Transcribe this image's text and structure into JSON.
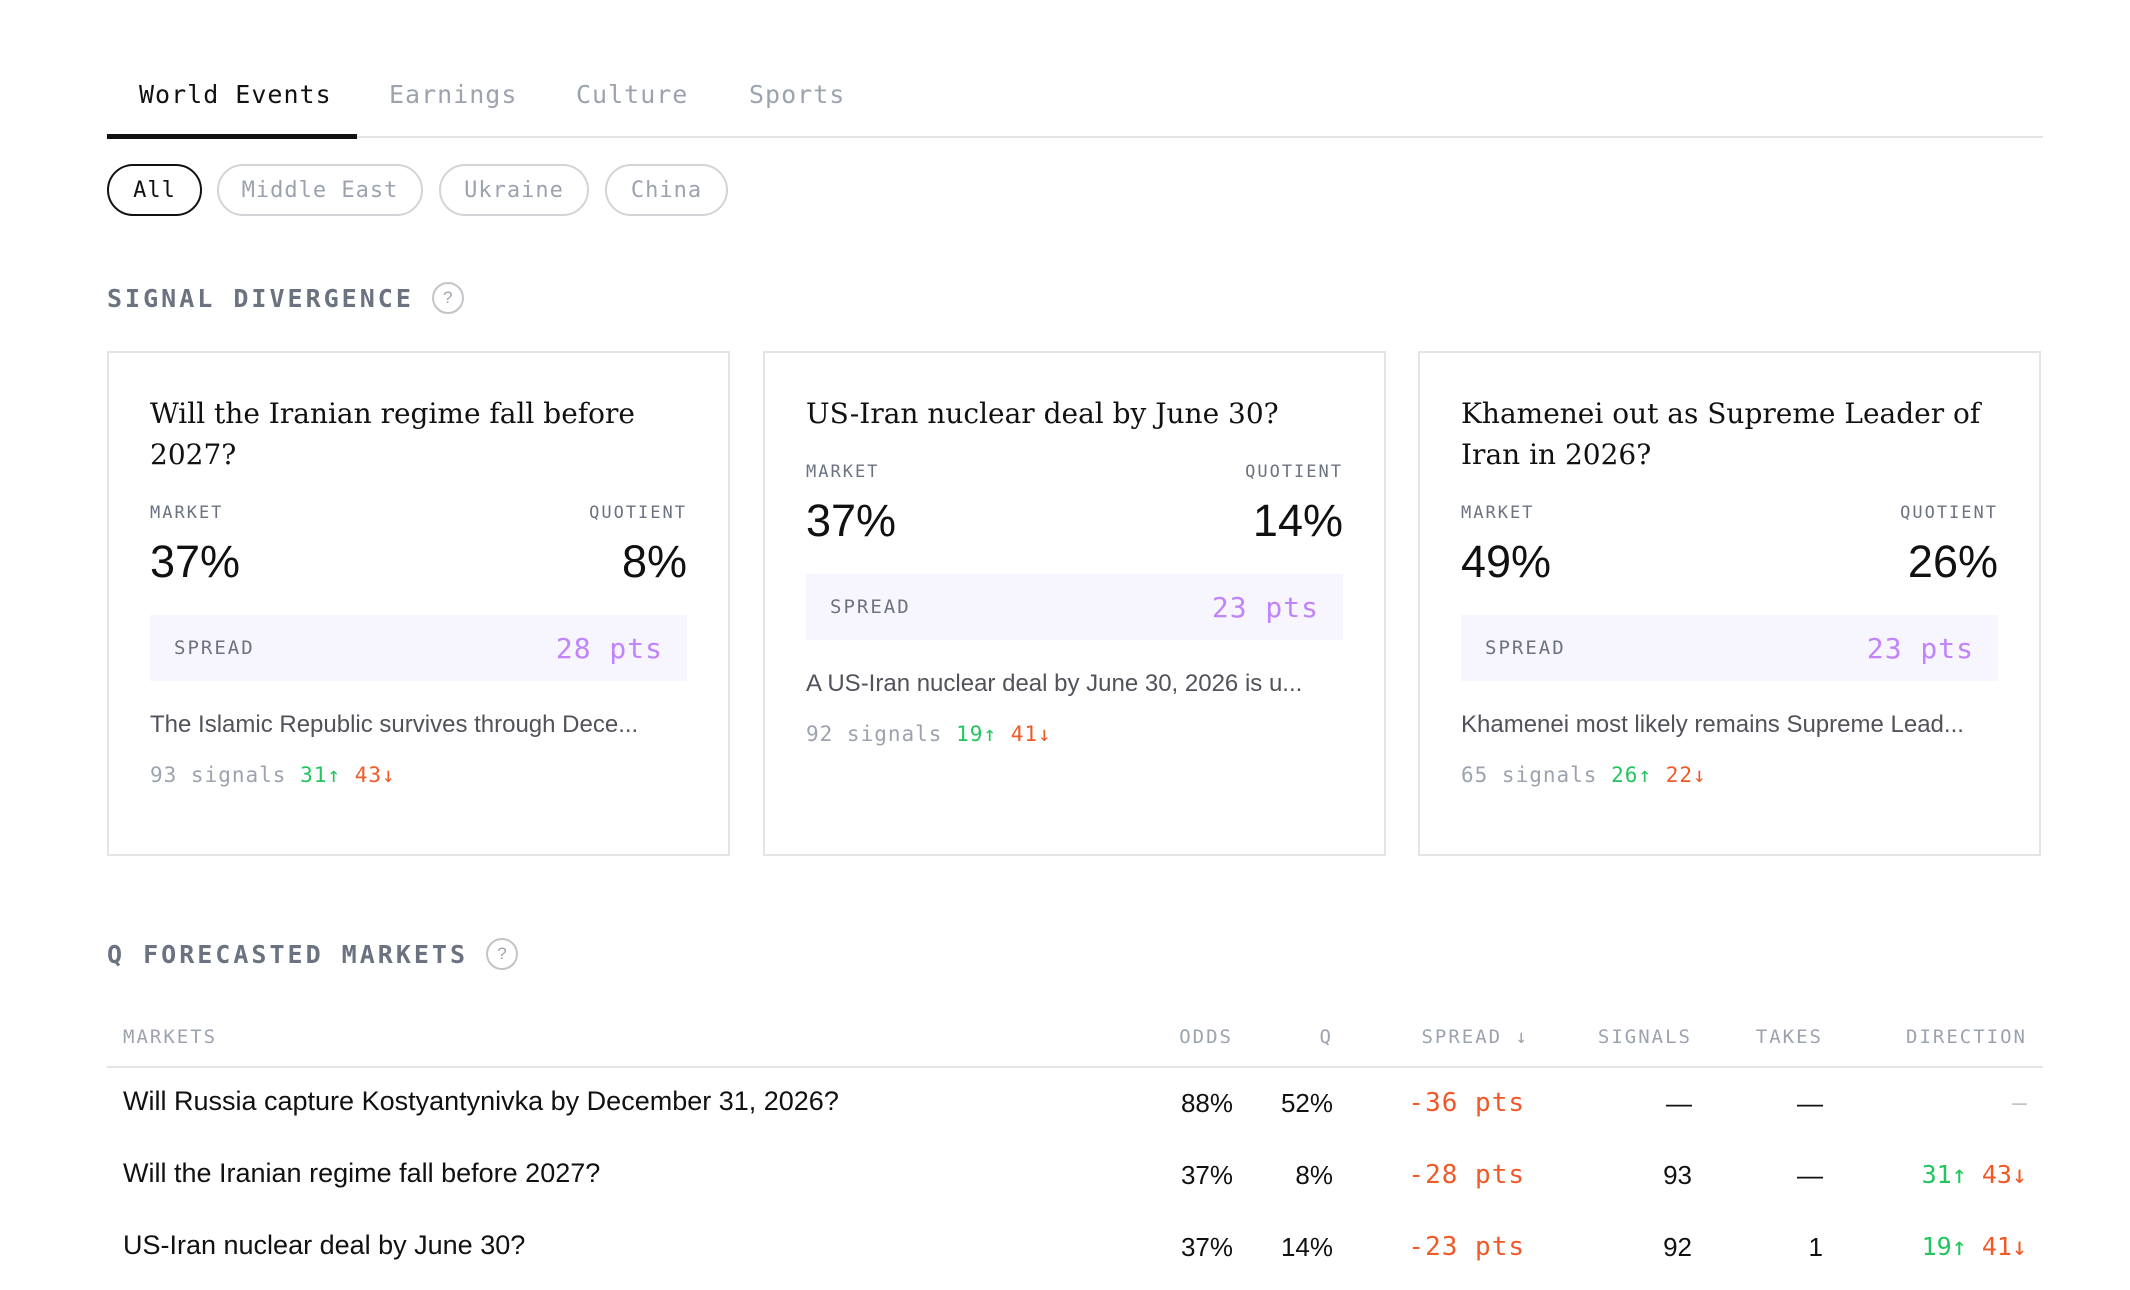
{
  "tabs": [
    {
      "label": "World Events",
      "active": true
    },
    {
      "label": "Earnings",
      "active": false
    },
    {
      "label": "Culture",
      "active": false
    },
    {
      "label": "Sports",
      "active": false
    }
  ],
  "filters": [
    {
      "label": "All",
      "active": true
    },
    {
      "label": "Middle East",
      "active": false
    },
    {
      "label": "Ukraine",
      "active": false
    },
    {
      "label": "China",
      "active": false
    }
  ],
  "signal_divergence": {
    "title": "SIGNAL DIVERGENCE",
    "help": "?",
    "market_label": "MARKET",
    "quotient_label": "QUOTIENT",
    "spread_label": "SPREAD",
    "cards": [
      {
        "title": "Will the Iranian regime fall before 2027?",
        "market": "37%",
        "quotient": "8%",
        "spread": "28 pts",
        "description": "The Islamic Republic survives through Dece...",
        "signals": "93 signals",
        "up": "31↑",
        "down": "43↓"
      },
      {
        "title": "US-Iran nuclear deal by June 30?",
        "market": "37%",
        "quotient": "14%",
        "spread": "23 pts",
        "description": "A US-Iran nuclear deal by June 30, 2026 is u...",
        "signals": "92 signals",
        "up": "19↑",
        "down": "41↓"
      },
      {
        "title": "Khamenei out as Supreme Leader of Iran in 2026?",
        "market": "49%",
        "quotient": "26%",
        "spread": "23 pts",
        "description": "Khamenei most likely remains Supreme Lead...",
        "signals": "65 signals",
        "up": "26↑",
        "down": "22↓"
      }
    ]
  },
  "forecasted_markets": {
    "title": "Q FORECASTED MARKETS",
    "help": "?",
    "columns": {
      "markets": "MARKETS",
      "odds": "ODDS",
      "q": "Q",
      "spread": "SPREAD ↓",
      "signals": "SIGNALS",
      "takes": "TAKES",
      "direction": "DIRECTION"
    },
    "rows": [
      {
        "market": "Will Russia capture Kostyantynivka by December 31, 2026?",
        "odds": "88%",
        "q": "52%",
        "spread": "-36 pts",
        "signals": "—",
        "takes": "—",
        "dir_empty": "—",
        "dir_up": "",
        "dir_down": ""
      },
      {
        "market": "Will the Iranian regime fall before 2027?",
        "odds": "37%",
        "q": "8%",
        "spread": "-28 pts",
        "signals": "93",
        "takes": "—",
        "dir_empty": "",
        "dir_up": "31↑",
        "dir_down": "43↓"
      },
      {
        "market": "US-Iran nuclear deal by June 30?",
        "odds": "37%",
        "q": "14%",
        "spread": "-23 pts",
        "signals": "92",
        "takes": "1",
        "dir_empty": "",
        "dir_up": "19↑",
        "dir_down": "41↓"
      }
    ]
  },
  "colors": {
    "up": "#22c55e",
    "down": "#ef5a28",
    "spread_accent": "#c084fc",
    "spread_bg": "#f7f5fe"
  }
}
